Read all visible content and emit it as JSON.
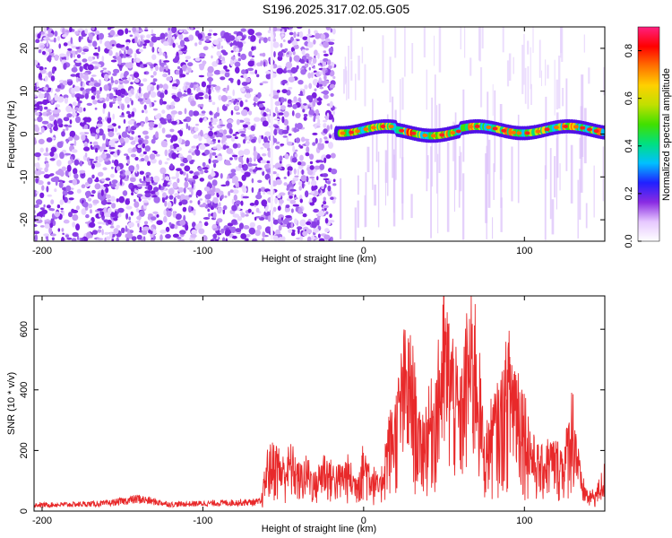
{
  "title": "S196.2025.317.02.05.G05",
  "chart_data": [
    {
      "type": "heatmap",
      "xlabel": "Height of straight line (km)",
      "ylabel": "Frequency (Hz)",
      "xlim": [
        -205,
        150
      ],
      "ylim": [
        -25,
        25
      ],
      "xticks": [
        -200,
        -100,
        0,
        100
      ],
      "xtick_labels": [
        "-200",
        "-100",
        "0",
        "100"
      ],
      "yticks": [
        -20,
        -10,
        0,
        10,
        20
      ],
      "ytick_labels": [
        "-20",
        "-10",
        "0",
        "10",
        "20"
      ],
      "description_regions": [
        {
          "x_range": [
            -205,
            -18
          ],
          "pattern": "dense noise, amplitude ~0.1-0.3"
        },
        {
          "x_range": [
            -18,
            150
          ],
          "pattern": "narrow signal band near 0 to 2 Hz, amplitude up to ~0.9"
        }
      ],
      "colorbar": {
        "label": "Normalized spectral amplitude",
        "range": [
          0,
          0.9
        ],
        "ticks": [
          0,
          0.2,
          0.4,
          0.6,
          0.8
        ],
        "tick_labels": [
          "0.0",
          "0.2",
          "0.4",
          "0.6",
          "0.8"
        ],
        "colors": [
          "#ffffff",
          "#e6c8ff",
          "#8a2be2",
          "#2020ff",
          "#00c0ff",
          "#00e080",
          "#40e000",
          "#c0e000",
          "#ffd000",
          "#ff7000",
          "#ff0000",
          "#ff2080"
        ]
      }
    },
    {
      "type": "line",
      "xlabel": "Height of straight line (km)",
      "ylabel": "SNR (10 * v/v)",
      "xlim": [
        -205,
        150
      ],
      "ylim": [
        0,
        710
      ],
      "xticks": [
        -200,
        -100,
        0,
        100
      ],
      "xtick_labels": [
        "-200",
        "-100",
        "0",
        "100"
      ],
      "yticks": [
        0,
        200,
        400,
        600
      ],
      "ytick_labels": [
        "0",
        "200",
        "400",
        "600"
      ],
      "series": [
        {
          "name": "SNR",
          "color": "#e8292a",
          "x": [
            -205,
            -180,
            -160,
            -140,
            -120,
            -100,
            -80,
            -64,
            -60,
            -55,
            -50,
            -45,
            -40,
            -35,
            -30,
            -25,
            -20,
            -15,
            -10,
            -5,
            0,
            5,
            10,
            15,
            20,
            25,
            30,
            35,
            40,
            45,
            50,
            55,
            60,
            65,
            70,
            75,
            80,
            85,
            90,
            95,
            100,
            105,
            110,
            115,
            120,
            125,
            130,
            135,
            140,
            145,
            150
          ],
          "y": [
            20,
            22,
            25,
            40,
            22,
            25,
            28,
            30,
            200,
            230,
            180,
            220,
            150,
            180,
            120,
            200,
            160,
            150,
            180,
            120,
            220,
            160,
            100,
            300,
            380,
            580,
            560,
            300,
            380,
            470,
            700,
            600,
            420,
            680,
            690,
            250,
            370,
            420,
            580,
            520,
            400,
            250,
            200,
            240,
            230,
            220,
            420,
            130,
            60,
            80,
            160
          ]
        }
      ]
    }
  ]
}
